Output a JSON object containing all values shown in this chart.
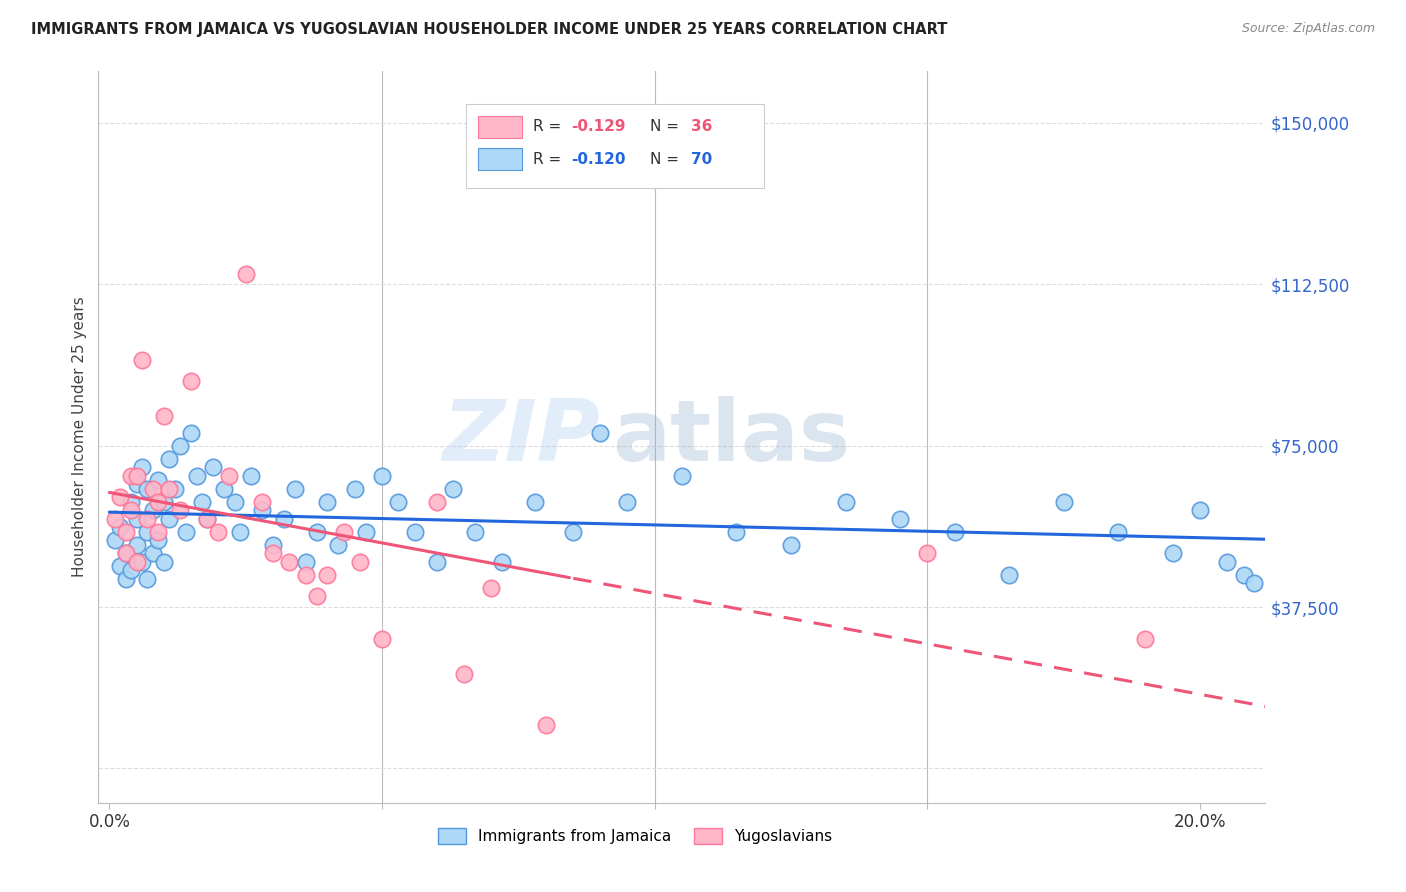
{
  "title": "IMMIGRANTS FROM JAMAICA VS YUGOSLAVIAN HOUSEHOLDER INCOME UNDER 25 YEARS CORRELATION CHART",
  "source": "Source: ZipAtlas.com",
  "ylabel": "Householder Income Under 25 years",
  "y_ticks": [
    0,
    37500,
    75000,
    112500,
    150000
  ],
  "y_tick_labels": [
    "",
    "$37,500",
    "$75,000",
    "$112,500",
    "$150,000"
  ],
  "x_ticks": [
    0.0,
    0.05,
    0.1,
    0.15,
    0.2
  ],
  "x_tick_labels": [
    "0.0%",
    "",
    "",
    "",
    "20.0%"
  ],
  "xlim": [
    -0.002,
    0.212
  ],
  "ylim": [
    -8000,
    162000
  ],
  "jamaica_color": "#ADD8F7",
  "yugoslavian_color": "#FFB6C8",
  "jamaica_edge": "#5599DD",
  "yugoslavian_edge": "#FF7799",
  "trend_jamaica_color": "#2266DD",
  "trend_yugoslavian_color": "#EE5577",
  "jamaica_R": -0.12,
  "jamaica_N": 70,
  "yugoslavian_R": -0.129,
  "yugoslavian_N": 36,
  "watermark_zip": "ZIP",
  "watermark_atlas": "atlas",
  "background_color": "#FFFFFF",
  "grid_color": "#DDDDDD",
  "jamaica_x": [
    0.001,
    0.002,
    0.002,
    0.003,
    0.003,
    0.004,
    0.004,
    0.005,
    0.005,
    0.005,
    0.006,
    0.006,
    0.007,
    0.007,
    0.007,
    0.008,
    0.008,
    0.009,
    0.009,
    0.01,
    0.01,
    0.011,
    0.011,
    0.012,
    0.013,
    0.014,
    0.015,
    0.016,
    0.017,
    0.018,
    0.019,
    0.021,
    0.023,
    0.024,
    0.026,
    0.028,
    0.03,
    0.032,
    0.034,
    0.036,
    0.038,
    0.04,
    0.042,
    0.045,
    0.047,
    0.05,
    0.053,
    0.056,
    0.06,
    0.063,
    0.067,
    0.072,
    0.078,
    0.085,
    0.09,
    0.095,
    0.105,
    0.115,
    0.125,
    0.135,
    0.145,
    0.155,
    0.165,
    0.175,
    0.185,
    0.195,
    0.2,
    0.205,
    0.208,
    0.21
  ],
  "jamaica_y": [
    53000,
    47000,
    56000,
    50000,
    44000,
    62000,
    46000,
    58000,
    52000,
    66000,
    70000,
    48000,
    65000,
    55000,
    44000,
    60000,
    50000,
    67000,
    53000,
    62000,
    48000,
    72000,
    58000,
    65000,
    75000,
    55000,
    78000,
    68000,
    62000,
    58000,
    70000,
    65000,
    62000,
    55000,
    68000,
    60000,
    52000,
    58000,
    65000,
    48000,
    55000,
    62000,
    52000,
    65000,
    55000,
    68000,
    62000,
    55000,
    48000,
    65000,
    55000,
    48000,
    62000,
    55000,
    78000,
    62000,
    68000,
    55000,
    52000,
    62000,
    58000,
    55000,
    45000,
    62000,
    55000,
    50000,
    60000,
    48000,
    45000,
    43000
  ],
  "yugoslavian_x": [
    0.001,
    0.002,
    0.003,
    0.003,
    0.004,
    0.004,
    0.005,
    0.005,
    0.006,
    0.007,
    0.008,
    0.009,
    0.009,
    0.01,
    0.011,
    0.013,
    0.015,
    0.018,
    0.02,
    0.022,
    0.025,
    0.028,
    0.03,
    0.033,
    0.036,
    0.038,
    0.04,
    0.043,
    0.046,
    0.05,
    0.06,
    0.065,
    0.07,
    0.08,
    0.15,
    0.19
  ],
  "yugoslavian_y": [
    58000,
    63000,
    55000,
    50000,
    68000,
    60000,
    48000,
    68000,
    95000,
    58000,
    65000,
    62000,
    55000,
    82000,
    65000,
    60000,
    90000,
    58000,
    55000,
    68000,
    115000,
    62000,
    50000,
    48000,
    45000,
    40000,
    45000,
    55000,
    48000,
    30000,
    62000,
    22000,
    42000,
    10000,
    50000,
    30000
  ]
}
